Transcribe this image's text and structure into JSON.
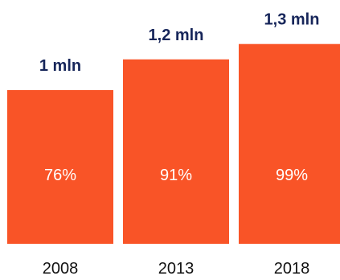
{
  "chart_data": {
    "type": "bar",
    "categories": [
      "2008",
      "2013",
      "2018"
    ],
    "values": [
      1.0,
      1.2,
      1.3
    ],
    "value_labels": [
      "1 mln",
      "1,2 mln",
      "1,3 mln"
    ],
    "inner_labels": [
      "76%",
      "91%",
      "99%"
    ],
    "bar_color": "#f95427",
    "value_label_color": "#17265a",
    "inner_label_color": "#ffffff",
    "category_label_color": "#111111",
    "grid": false,
    "legend": "none"
  }
}
